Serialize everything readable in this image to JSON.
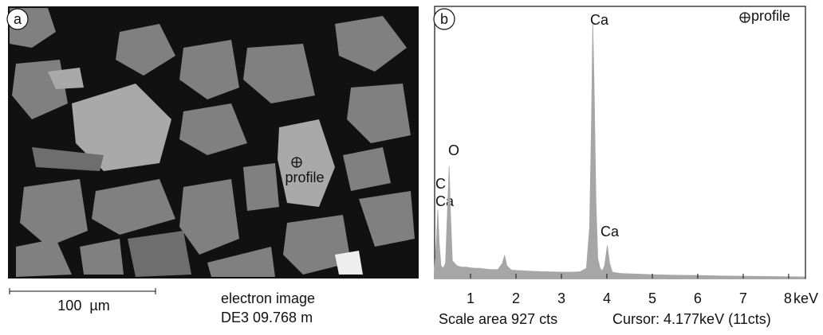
{
  "image_panel": {
    "panel_label": "a",
    "marker_label": "profile",
    "scale_bar": "100  µm",
    "caption": [
      "electron image",
      "DE3 09.768 m"
    ]
  },
  "chart_data": {
    "type": "area",
    "panel_label": "b",
    "legend": "profile",
    "x_label": "keV",
    "color": "#a6a6a6",
    "x": [
      0.2,
      0.25,
      0.28,
      0.31,
      0.35,
      0.4,
      0.45,
      0.5,
      0.53,
      0.56,
      0.6,
      0.7,
      0.8,
      0.9,
      1.0,
      1.1,
      1.2,
      1.3,
      1.4,
      1.5,
      1.6,
      1.7,
      1.75,
      1.8,
      1.9,
      2.0,
      2.2,
      2.4,
      2.6,
      2.8,
      3.0,
      3.2,
      3.4,
      3.55,
      3.62,
      3.66,
      3.69,
      3.72,
      3.76,
      3.8,
      3.85,
      3.9,
      3.95,
      4.01,
      4.06,
      4.12,
      4.3,
      4.6,
      5.0,
      5.5,
      6.0,
      6.5,
      7.0,
      7.5,
      8.0,
      8.35
    ],
    "values": [
      2,
      15,
      27,
      14,
      5,
      4,
      6,
      30,
      44,
      25,
      7,
      5,
      4.5,
      4.5,
      4.2,
      4,
      4,
      3.8,
      3.6,
      3.5,
      3.5,
      6,
      9,
      5,
      3.3,
      3.2,
      3,
      2.8,
      2.7,
      2.6,
      2.5,
      2.5,
      2.6,
      4,
      20,
      60,
      100,
      75,
      30,
      8,
      4,
      3,
      5,
      13,
      6,
      2.5,
      2,
      1.8,
      1.5,
      1.3,
      1.2,
      1,
      0.9,
      0.8,
      0.7,
      0.6
    ],
    "xlim": [
      0.21,
      8.37
    ],
    "ylim": [
      0,
      100
    ],
    "xticks": [
      1,
      2,
      3,
      4,
      5,
      6,
      7,
      8
    ],
    "annotations": [
      "Ca",
      "O",
      "C",
      "Ca",
      "Ca"
    ],
    "footer": [
      "Scale area 927 cts",
      "Cursor: 4.177keV (11cts)"
    ]
  }
}
